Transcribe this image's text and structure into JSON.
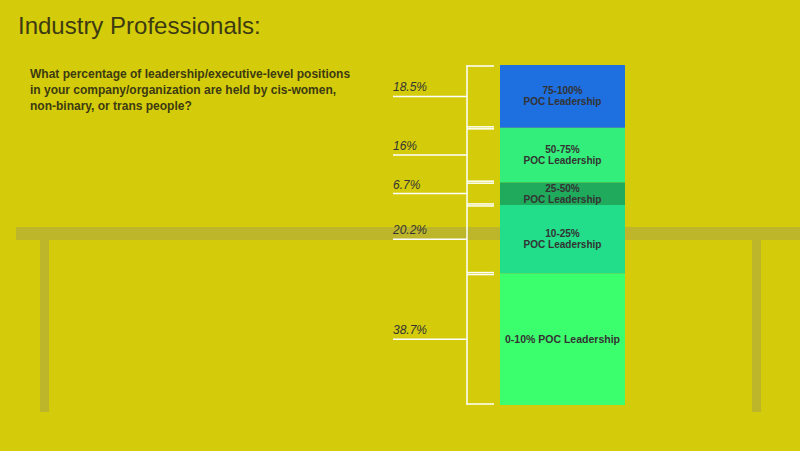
{
  "chart_data": {
    "type": "bar",
    "stacked": true,
    "title": "Industry Professionals:",
    "subtitle": "What percentage of leadership/executive-level positions in your company/organization are held by cis-women, non-binary, or trans people?",
    "categories": [
      "75-100% POC Leadership",
      "50-75% POC Leadership",
      "25-50% POC Leadership",
      "10-25% POC Leadership",
      "0-10% POC Leadership"
    ],
    "values": [
      18.5,
      16,
      6.7,
      20.2,
      38.7
    ],
    "value_labels": [
      "18.5%",
      "16%",
      "6.7%",
      "20.2%",
      "38.7%"
    ],
    "colors": [
      "#1e6fe0",
      "#33ee7a",
      "#1faa5c",
      "#22dd8a",
      "#3cff6e"
    ],
    "ylim": [
      0,
      100.1
    ],
    "tick_labels": false,
    "data_labels": true
  }
}
